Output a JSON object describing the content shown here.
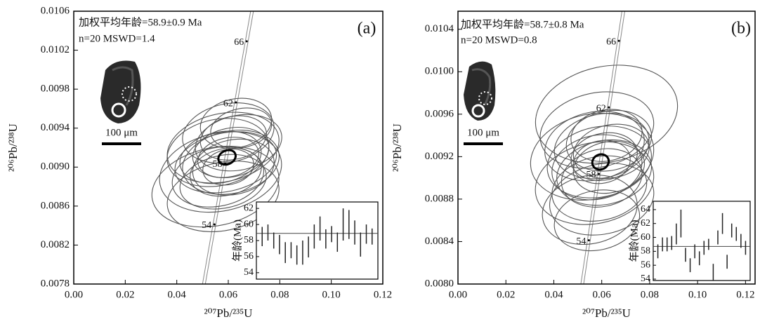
{
  "chart_data": [
    {
      "type": "concordia",
      "panel_label": "(a)",
      "annotations": [
        "加权平均年龄=58.9±0.9 Ma",
        "n=20 MSWD=1.4"
      ],
      "x_label": "²⁰⁷Pb/²³⁵U",
      "y_label": "²⁰⁶Pb/²³⁸U",
      "scale_bar": "100 μm",
      "xlim": [
        0,
        0.12
      ],
      "xticks": [
        {
          "value": 0,
          "label": "0.00"
        },
        0.02,
        0.04,
        0.06,
        0.08,
        {
          "value": 0.1,
          "label": "0.10"
        },
        0.12
      ],
      "ylim": [
        0.0078,
        0.0106
      ],
      "yticks": [
        0.0078,
        0.0082,
        0.0086,
        {
          "value": 0.009,
          "label": "0.0090"
        },
        0.0094,
        0.0098,
        0.0102,
        0.0106
      ],
      "concordia": {
        "ages": [
          54,
          58,
          62,
          66
        ],
        "x": [
          0.05462,
          0.05878,
          0.06296,
          0.06716
        ],
        "y": [
          0.008412,
          0.009038,
          0.009664,
          0.010291
        ]
      },
      "ellipses": {
        "x": [
          0.06,
          0.058,
          0.062,
          0.057,
          0.055,
          0.06,
          0.063,
          0.059,
          0.056,
          0.061,
          0.064,
          0.058,
          0.06,
          0.062,
          0.057,
          0.059,
          0.061,
          0.058,
          0.065,
          0.056
        ],
        "y": [
          0.00935,
          0.0092,
          0.009,
          0.00895,
          0.0088,
          0.0091,
          0.00945,
          0.00905,
          0.0089,
          0.00915,
          0.00925,
          0.0087,
          0.009,
          0.0093,
          0.0091,
          0.00895,
          0.00905,
          0.00885,
          0.0094,
          0.00915
        ],
        "x_err": [
          0.018,
          0.022,
          0.016,
          0.024,
          0.025,
          0.012,
          0.014,
          0.02,
          0.018,
          0.015,
          0.017,
          0.022,
          0.01,
          0.013,
          0.016,
          0.014,
          0.019,
          0.017,
          0.012,
          0.02
        ],
        "y_err": [
          0.0003,
          0.00035,
          0.00028,
          0.0004,
          0.0004,
          0.0002,
          0.00025,
          0.0003,
          0.0003,
          0.00025,
          0.00028,
          0.00035,
          0.00018,
          0.00022,
          0.00026,
          0.00024,
          0.00032,
          0.00027,
          0.0002,
          0.00034
        ]
      },
      "mean_ellipse": {
        "x": 0.0595,
        "y": 0.0091,
        "x_err": 0.0035,
        "y_err": 7e-05
      },
      "inset": {
        "y_label": "年龄(Ma)",
        "ylim": [
          53.2,
          62.8
        ],
        "yticks": [
          54,
          56,
          58,
          60,
          62
        ],
        "weighted_mean": 58.9,
        "values": [
          58.5,
          59,
          58,
          57.5,
          56.5,
          56.8,
          56.2,
          56.5,
          57.2,
          58.5,
          59.5,
          58.2,
          58.8,
          57.8,
          60,
          60,
          59,
          57.5,
          58.8,
          58.5
        ],
        "errors": [
          1.2,
          1,
          1,
          1.2,
          1.3,
          1,
          1.2,
          1.5,
          1.3,
          1.5,
          1.5,
          1.2,
          1,
          1.2,
          2,
          1.8,
          1.5,
          1.5,
          1.2,
          1
        ]
      }
    },
    {
      "type": "concordia",
      "panel_label": "(b)",
      "annotations": [
        "加权平均年龄=58.7±0.8 Ma",
        "n=20 MSWD=0.8"
      ],
      "x_label": "²⁰⁷Pb/²³⁵U",
      "y_label": "²⁰⁶Pb/²³⁸U",
      "scale_bar": "100 μm",
      "xlim": [
        0,
        0.124
      ],
      "xticks": [
        {
          "value": 0,
          "label": "0.00"
        },
        0.02,
        0.04,
        0.06,
        0.08,
        {
          "value": 0.1,
          "label": "0.10"
        },
        0.12
      ],
      "ylim": [
        0.008,
        0.01057
      ],
      "yticks": [
        {
          "value": 0.008,
          "label": "0.0080"
        },
        0.0084,
        0.0088,
        0.0092,
        0.0096,
        {
          "value": 0.01,
          "label": "0.0100"
        },
        0.0104
      ],
      "concordia": {
        "ages": [
          54,
          58,
          62,
          66
        ],
        "x": [
          0.05462,
          0.05878,
          0.06296,
          0.06716
        ],
        "y": [
          0.008412,
          0.009038,
          0.009664,
          0.010291
        ]
      },
      "ellipses": {
        "x": [
          0.062,
          0.058,
          0.06,
          0.056,
          0.063,
          0.059,
          0.061,
          0.057,
          0.06,
          0.064,
          0.058,
          0.055,
          0.062,
          0.06,
          0.059,
          0.061,
          0.057,
          0.063,
          0.058,
          0.06
        ],
        "y": [
          0.0096,
          0.00945,
          0.0093,
          0.0092,
          0.00935,
          0.00915,
          0.00905,
          0.00895,
          0.0088,
          0.00925,
          0.0091,
          0.0087,
          0.0094,
          0.009,
          0.0089,
          0.0092,
          0.0093,
          0.0091,
          0.0086,
          0.00915
        ],
        "x_err": [
          0.03,
          0.024,
          0.02,
          0.026,
          0.018,
          0.022,
          0.02,
          0.025,
          0.022,
          0.016,
          0.019,
          0.02,
          0.015,
          0.017,
          0.02,
          0.014,
          0.021,
          0.015,
          0.018,
          0.012
        ],
        "y_err": [
          0.00045,
          0.00035,
          0.0003,
          0.0004,
          0.00028,
          0.00033,
          0.0003,
          0.00038,
          0.00033,
          0.00025,
          0.0003,
          0.00032,
          0.00024,
          0.00027,
          0.0003,
          0.00022,
          0.00032,
          0.00024,
          0.00028,
          0.0002
        ]
      },
      "mean_ellipse": {
        "x": 0.0595,
        "y": 0.00915,
        "x_err": 0.0035,
        "y_err": 7e-05
      },
      "inset": {
        "y_label": "年龄(Ma)",
        "ylim": [
          53.8,
          65.2
        ],
        "yticks": [
          54,
          56,
          58,
          60,
          62,
          64
        ],
        "weighted_mean": 58.7,
        "values": [
          58,
          59,
          59,
          59.2,
          60.5,
          62,
          57.5,
          56,
          58,
          57,
          58.5,
          59,
          55,
          60,
          62,
          56.5,
          61,
          60.5,
          59.5,
          58.5
        ],
        "errors": [
          1,
          1,
          1,
          1,
          1.5,
          2,
          1,
          1,
          1,
          1,
          1,
          0.8,
          1.2,
          1,
          1.5,
          1,
          1,
          1,
          1,
          1
        ]
      }
    }
  ]
}
